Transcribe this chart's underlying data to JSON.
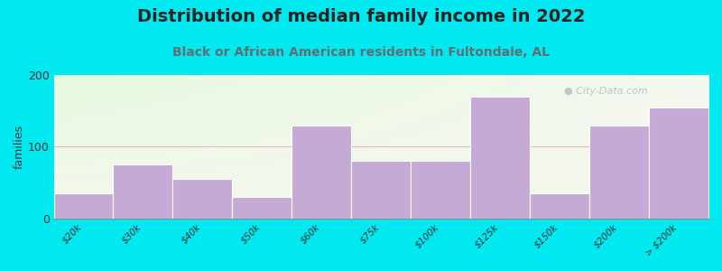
{
  "title": "Distribution of median family income in 2022",
  "subtitle": "Black or African American residents in Fultondale, AL",
  "categories": [
    "$20k",
    "$30k",
    "$40k",
    "$50k",
    "$60k",
    "$75k",
    "$100k",
    "$125k",
    "$150k",
    "$200k",
    "> $200k"
  ],
  "values": [
    35,
    75,
    55,
    30,
    130,
    80,
    80,
    170,
    35,
    130,
    155
  ],
  "bar_color": "#c4aad4",
  "bar_edge_color": "#ffffff",
  "background_outer": "#00e8f0",
  "ylabel": "families",
  "ylim": [
    0,
    200
  ],
  "yticks": [
    0,
    100,
    200
  ],
  "grid_color": "#e8b0b0",
  "title_fontsize": 14,
  "subtitle_fontsize": 10,
  "subtitle_color": "#607070",
  "watermark": "  City-Data.com",
  "tick_fontsize": 7.5
}
